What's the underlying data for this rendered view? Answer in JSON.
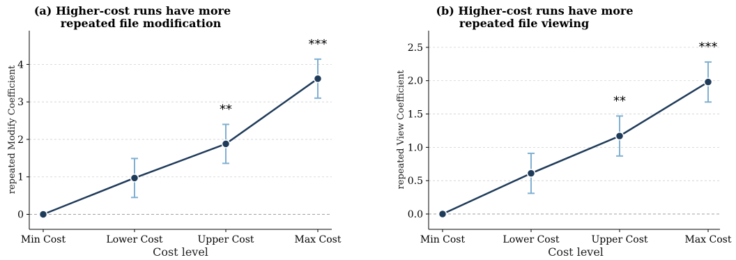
{
  "chart_data": [
    {
      "type": "line",
      "title_line1": "(a) Higher-cost runs have more",
      "title_line2": "repeated file modification",
      "xlabel": "Cost level",
      "ylabel": "repeated Modify Coefficient",
      "categories": [
        "Min Cost",
        "Lower Cost",
        "Upper Cost",
        "Max Cost"
      ],
      "values": [
        0,
        0.97,
        1.88,
        3.62
      ],
      "ci_lower": [
        0,
        0.45,
        1.36,
        3.1
      ],
      "ci_upper": [
        0,
        1.49,
        2.4,
        4.14
      ],
      "significance": [
        "",
        "",
        "**",
        "***"
      ],
      "yticks": [
        0,
        1,
        2,
        3,
        4
      ],
      "ytick_labels": [
        "0",
        "1",
        "2",
        "3",
        "4"
      ],
      "ylim": [
        -0.4,
        4.9
      ],
      "grid": true,
      "line_color": "#1f3b5a",
      "error_color": "#7fafd1"
    },
    {
      "type": "line",
      "title_line1": "(b) Higher-cost runs have more",
      "title_line2": "repeated file viewing",
      "xlabel": "Cost level",
      "ylabel": "repeated View Coefficient",
      "categories": [
        "Min Cost",
        "Lower Cost",
        "Upper Cost",
        "Max Cost"
      ],
      "values": [
        0,
        0.61,
        1.17,
        1.98
      ],
      "ci_lower": [
        0,
        0.31,
        0.87,
        1.68
      ],
      "ci_upper": [
        0,
        0.91,
        1.47,
        2.28
      ],
      "significance": [
        "",
        "",
        "**",
        "***"
      ],
      "yticks": [
        0,
        0.5,
        1,
        1.5,
        2,
        2.5
      ],
      "ytick_labels": [
        "0.0",
        "0.5",
        "1.0",
        "1.5",
        "2.0",
        "2.5"
      ],
      "ylim": [
        -0.23,
        2.75
      ],
      "grid": true,
      "line_color": "#1f3b5a",
      "error_color": "#7fafd1"
    }
  ]
}
